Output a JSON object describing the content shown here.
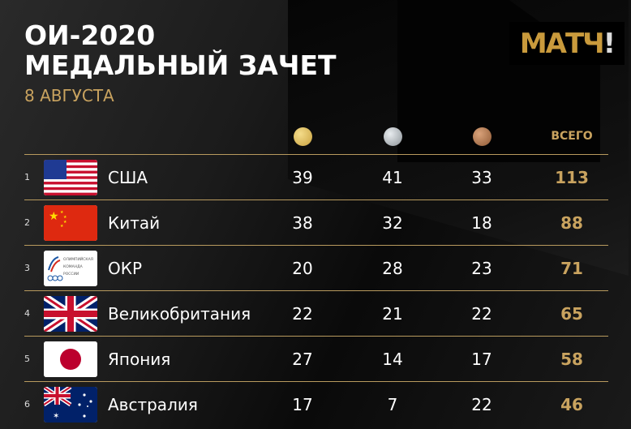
{
  "header": {
    "title_line1": "ОИ-2020",
    "title_line2": "МЕДАЛЬНЫЙ ЗАЧЕТ",
    "date": "8 АВГУСТА",
    "logo": "МАТЧ!"
  },
  "columns": {
    "gold": "gold-medal",
    "silver": "silver-medal",
    "bronze": "bronze-medal",
    "total": "ВСЕГО"
  },
  "colors": {
    "accent": "#c9a35f",
    "background": "#0d0d0d"
  },
  "rows": [
    {
      "rank": "1",
      "country": "США",
      "flag": "usa-flag",
      "gold": "39",
      "silver": "41",
      "bronze": "33",
      "total": "113"
    },
    {
      "rank": "2",
      "country": "Китай",
      "flag": "china-flag",
      "gold": "38",
      "silver": "32",
      "bronze": "18",
      "total": "88"
    },
    {
      "rank": "3",
      "country": "ОКР",
      "flag": "roc-logo",
      "flag_text": "ОЛИМПИЙСКАЯ КОМАНДА РОССИИ",
      "gold": "20",
      "silver": "28",
      "bronze": "23",
      "total": "71"
    },
    {
      "rank": "4",
      "country": "Великобритания",
      "flag": "uk-flag",
      "gold": "22",
      "silver": "21",
      "bronze": "22",
      "total": "65"
    },
    {
      "rank": "5",
      "country": "Япония",
      "flag": "japan-flag",
      "gold": "27",
      "silver": "14",
      "bronze": "17",
      "total": "58"
    },
    {
      "rank": "6",
      "country": "Австралия",
      "flag": "australia-flag",
      "gold": "17",
      "silver": "7",
      "bronze": "22",
      "total": "46"
    }
  ]
}
